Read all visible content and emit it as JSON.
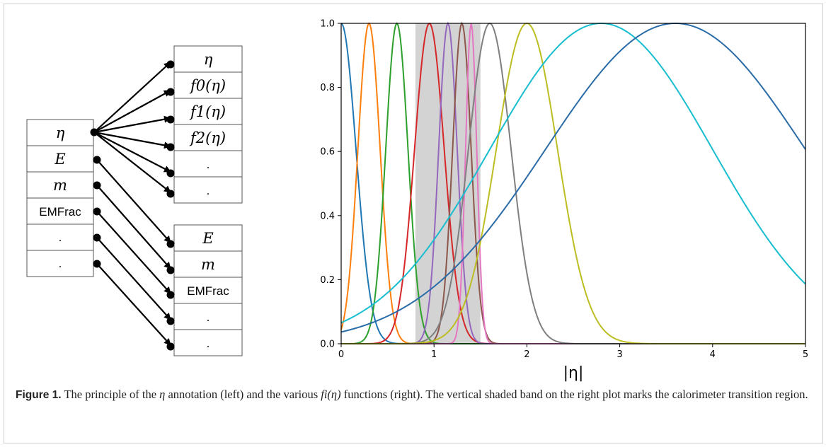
{
  "diagram": {
    "input_cells": [
      "η",
      "E",
      "m",
      "EMFrac",
      ".",
      "."
    ],
    "output_group_1": [
      "η",
      "f0(η)",
      "f1(η)",
      "f2(η)",
      ".",
      "."
    ],
    "output_group_2": [
      "E",
      "m",
      "EMFrac",
      ".",
      "."
    ]
  },
  "chart_data": {
    "type": "line",
    "title": "",
    "xlabel": "|η|",
    "ylabel": "",
    "xlim": [
      0,
      5
    ],
    "ylim": [
      0,
      1.0
    ],
    "x_ticks": [
      "0",
      "1",
      "2",
      "3",
      "4",
      "5"
    ],
    "y_ticks": [
      "0.0",
      "0.2",
      "0.4",
      "0.6",
      "0.8",
      "1.0"
    ],
    "grid": false,
    "legend": "none",
    "shaded_band": {
      "x_start": 0.8,
      "x_end": 1.5,
      "color": "#d3d3d3"
    },
    "series": [
      {
        "center": 0.0,
        "width": 0.16,
        "color": "#1f77b4"
      },
      {
        "center": 0.3,
        "width": 0.12,
        "color": "#ff7f0e"
      },
      {
        "center": 0.6,
        "width": 0.12,
        "color": "#2ca02c"
      },
      {
        "center": 0.95,
        "width": 0.16,
        "color": "#d62728"
      },
      {
        "center": 1.15,
        "width": 0.1,
        "color": "#9467bd"
      },
      {
        "center": 1.3,
        "width": 0.1,
        "color": "#8c564b"
      },
      {
        "center": 1.4,
        "width": 0.06,
        "color": "#e377c2"
      },
      {
        "center": 1.6,
        "width": 0.23,
        "color": "#7f7f7f"
      },
      {
        "center": 2.0,
        "width": 0.33,
        "color": "#bcbd22"
      },
      {
        "center": 2.8,
        "width": 1.2,
        "color": "#17becf"
      },
      {
        "center": 3.6,
        "width": 1.4,
        "color": "#2a6ca8"
      }
    ]
  },
  "caption": {
    "label": "Figure 1.",
    "text_1": "The principle of the",
    "eta": "η",
    "text_2": "annotation (left) and the various",
    "fi": "fi(η)",
    "text_3": "functions (right). The vertical shaded band on the right plot marks the calorimeter transition region."
  }
}
